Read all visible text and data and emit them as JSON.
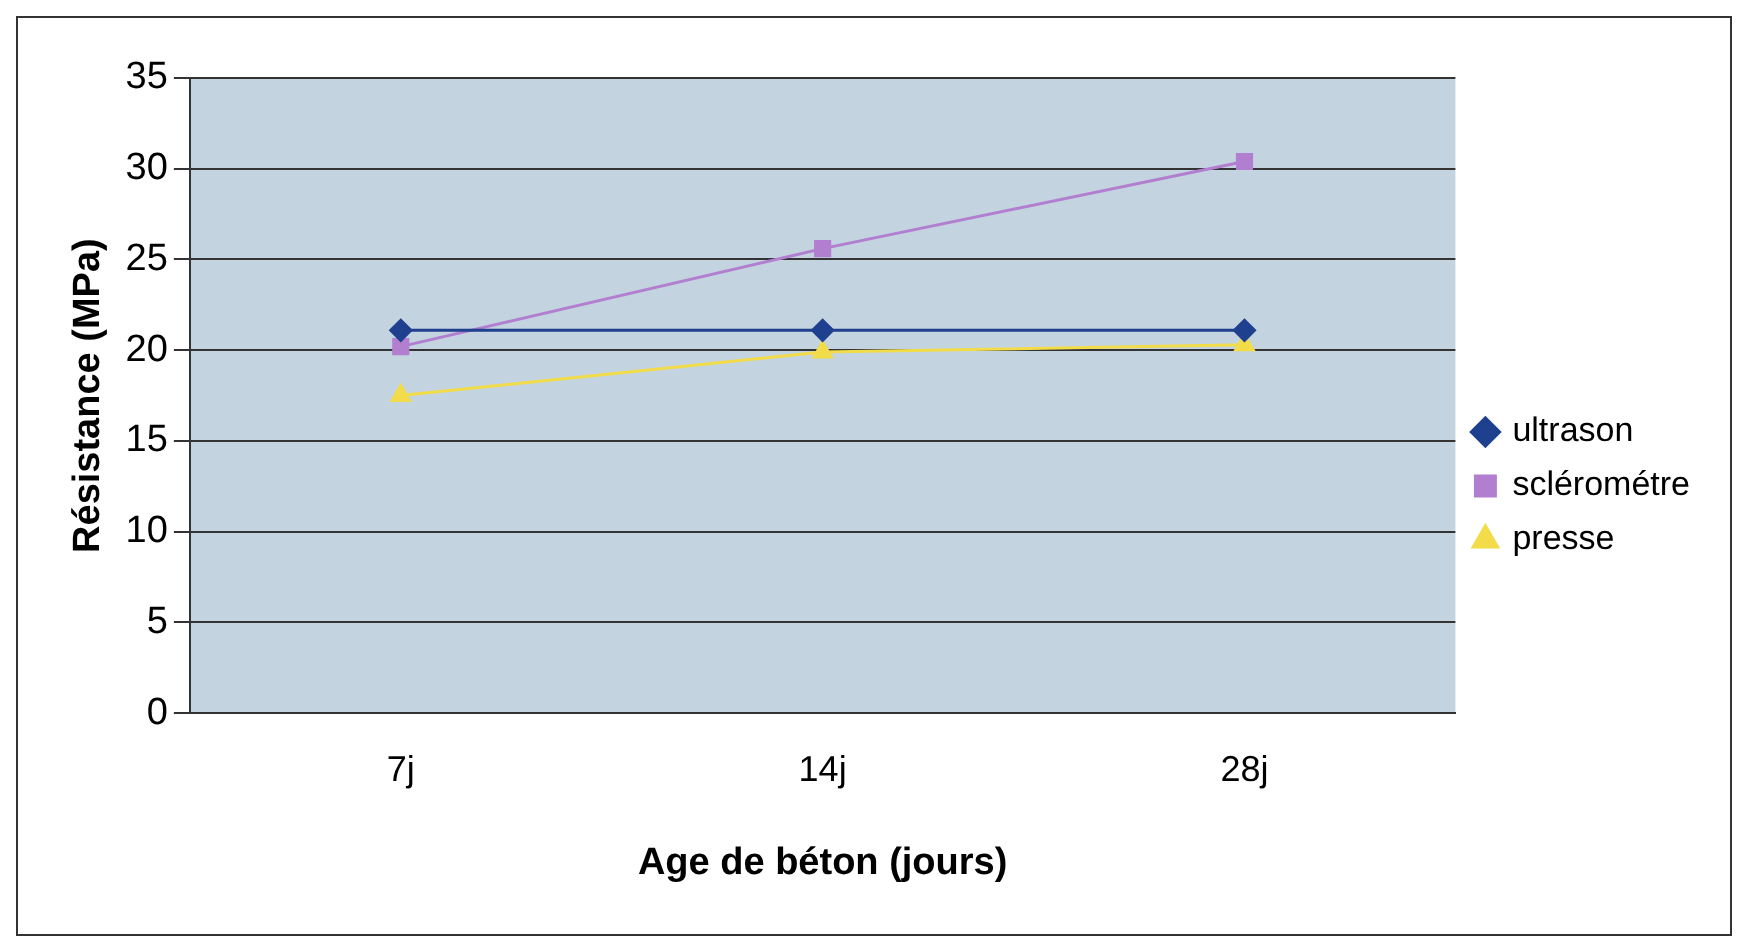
{
  "chart_data": {
    "type": "line",
    "xlabel": "Age de béton (jours)",
    "ylabel": "Résistance (MPa)",
    "categories": [
      "7j",
      "14j",
      "28j"
    ],
    "series": [
      {
        "name": "ultrason",
        "color": "#1f3f8f",
        "marker": "diamond",
        "values": [
          21.1,
          21.1,
          21.1
        ]
      },
      {
        "name": "sclérométre",
        "color": "#b27fd0",
        "marker": "square",
        "values": [
          20.2,
          25.6,
          30.4
        ]
      },
      {
        "name": "presse",
        "color": "#f2dc4a",
        "marker": "triangle",
        "values": [
          17.5,
          19.9,
          20.3
        ]
      }
    ],
    "ylim": [
      0,
      35
    ],
    "yticks": [
      0,
      5,
      10,
      15,
      20,
      25,
      30,
      35
    ],
    "grid": "y",
    "legend": "right"
  }
}
